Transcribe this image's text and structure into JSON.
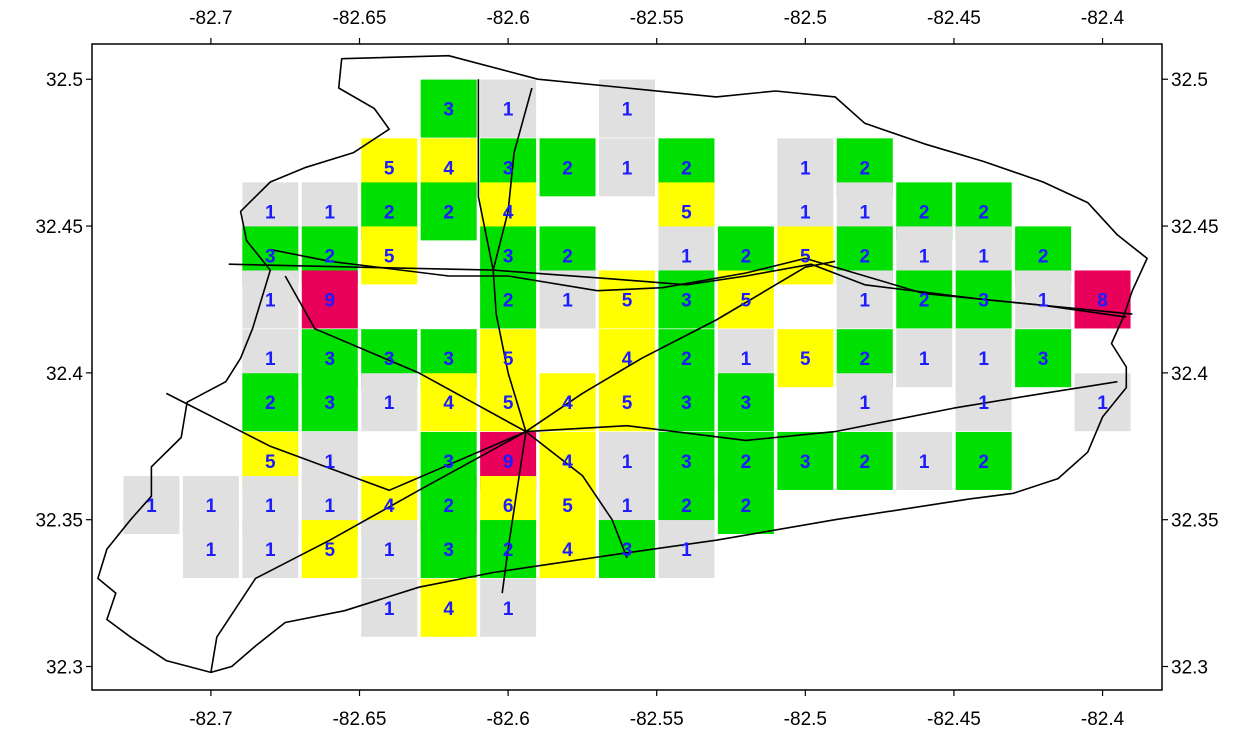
{
  "map": {
    "extent": {
      "lon": [
        -82.74,
        -82.38
      ],
      "lat": [
        32.292,
        32.512
      ]
    },
    "axes": {
      "x_ticks": [
        "-82.7",
        "-82.65",
        "-82.6",
        "-82.55",
        "-82.5",
        "-82.45",
        "-82.4"
      ],
      "y_ticks": [
        "32.5",
        "32.45",
        "32.4",
        "32.35",
        "32.3"
      ]
    },
    "colors": {
      "1": "#e0e0e0",
      "2": "#00e000",
      "3": "#00e000",
      "4": "#ffff00",
      "5": "#ffff00",
      "6": "#ffff00",
      "8": "#e8005a",
      "9": "#e8005a",
      "label": "#1c1cff",
      "boundary": "#000000"
    },
    "grid_cells": [
      {
        "lon": -82.62,
        "lat": 32.49,
        "count": "3"
      },
      {
        "lon": -82.6,
        "lat": 32.49,
        "count": "1"
      },
      {
        "lon": -82.56,
        "lat": 32.49,
        "count": "1"
      },
      {
        "lon": -82.64,
        "lat": 32.47,
        "count": "5"
      },
      {
        "lon": -82.62,
        "lat": 32.47,
        "count": "4"
      },
      {
        "lon": -82.6,
        "lat": 32.47,
        "count": "3"
      },
      {
        "lon": -82.58,
        "lat": 32.47,
        "count": "2"
      },
      {
        "lon": -82.56,
        "lat": 32.47,
        "count": "1"
      },
      {
        "lon": -82.54,
        "lat": 32.47,
        "count": "2"
      },
      {
        "lon": -82.5,
        "lat": 32.47,
        "count": "1"
      },
      {
        "lon": -82.48,
        "lat": 32.47,
        "count": "2"
      },
      {
        "lon": -82.68,
        "lat": 32.455,
        "count": "1"
      },
      {
        "lon": -82.66,
        "lat": 32.455,
        "count": "1"
      },
      {
        "lon": -82.64,
        "lat": 32.455,
        "count": "2"
      },
      {
        "lon": -82.62,
        "lat": 32.455,
        "count": "2"
      },
      {
        "lon": -82.6,
        "lat": 32.455,
        "count": "4"
      },
      {
        "lon": -82.54,
        "lat": 32.455,
        "count": "5"
      },
      {
        "lon": -82.5,
        "lat": 32.455,
        "count": "1"
      },
      {
        "lon": -82.48,
        "lat": 32.455,
        "count": "1"
      },
      {
        "lon": -82.46,
        "lat": 32.455,
        "count": "2"
      },
      {
        "lon": -82.44,
        "lat": 32.455,
        "count": "2"
      },
      {
        "lon": -82.68,
        "lat": 32.44,
        "count": "3"
      },
      {
        "lon": -82.66,
        "lat": 32.44,
        "count": "2"
      },
      {
        "lon": -82.64,
        "lat": 32.44,
        "count": "5"
      },
      {
        "lon": -82.6,
        "lat": 32.44,
        "count": "3"
      },
      {
        "lon": -82.58,
        "lat": 32.44,
        "count": "2"
      },
      {
        "lon": -82.54,
        "lat": 32.44,
        "count": "1"
      },
      {
        "lon": -82.52,
        "lat": 32.44,
        "count": "2"
      },
      {
        "lon": -82.5,
        "lat": 32.44,
        "count": "5"
      },
      {
        "lon": -82.48,
        "lat": 32.44,
        "count": "2"
      },
      {
        "lon": -82.46,
        "lat": 32.44,
        "count": "1"
      },
      {
        "lon": -82.44,
        "lat": 32.44,
        "count": "1"
      },
      {
        "lon": -82.42,
        "lat": 32.44,
        "count": "2"
      },
      {
        "lon": -82.68,
        "lat": 32.425,
        "count": "1"
      },
      {
        "lon": -82.66,
        "lat": 32.425,
        "count": "9"
      },
      {
        "lon": -82.6,
        "lat": 32.425,
        "count": "2"
      },
      {
        "lon": -82.58,
        "lat": 32.425,
        "count": "1"
      },
      {
        "lon": -82.56,
        "lat": 32.425,
        "count": "5"
      },
      {
        "lon": -82.54,
        "lat": 32.425,
        "count": "3"
      },
      {
        "lon": -82.52,
        "lat": 32.425,
        "count": "5"
      },
      {
        "lon": -82.48,
        "lat": 32.425,
        "count": "1"
      },
      {
        "lon": -82.46,
        "lat": 32.425,
        "count": "2"
      },
      {
        "lon": -82.44,
        "lat": 32.425,
        "count": "3"
      },
      {
        "lon": -82.42,
        "lat": 32.425,
        "count": "1"
      },
      {
        "lon": -82.4,
        "lat": 32.425,
        "count": "8"
      },
      {
        "lon": -82.68,
        "lat": 32.405,
        "count": "1"
      },
      {
        "lon": -82.66,
        "lat": 32.405,
        "count": "3"
      },
      {
        "lon": -82.64,
        "lat": 32.405,
        "count": "3"
      },
      {
        "lon": -82.62,
        "lat": 32.405,
        "count": "3"
      },
      {
        "lon": -82.6,
        "lat": 32.405,
        "count": "5"
      },
      {
        "lon": -82.56,
        "lat": 32.405,
        "count": "4"
      },
      {
        "lon": -82.54,
        "lat": 32.405,
        "count": "2"
      },
      {
        "lon": -82.52,
        "lat": 32.405,
        "count": "1"
      },
      {
        "lon": -82.5,
        "lat": 32.405,
        "count": "5"
      },
      {
        "lon": -82.48,
        "lat": 32.405,
        "count": "2"
      },
      {
        "lon": -82.46,
        "lat": 32.405,
        "count": "1"
      },
      {
        "lon": -82.44,
        "lat": 32.405,
        "count": "1"
      },
      {
        "lon": -82.42,
        "lat": 32.405,
        "count": "3"
      },
      {
        "lon": -82.68,
        "lat": 32.39,
        "count": "2"
      },
      {
        "lon": -82.66,
        "lat": 32.39,
        "count": "3"
      },
      {
        "lon": -82.64,
        "lat": 32.39,
        "count": "1"
      },
      {
        "lon": -82.62,
        "lat": 32.39,
        "count": "4"
      },
      {
        "lon": -82.6,
        "lat": 32.39,
        "count": "5"
      },
      {
        "lon": -82.58,
        "lat": 32.39,
        "count": "4"
      },
      {
        "lon": -82.56,
        "lat": 32.39,
        "count": "5"
      },
      {
        "lon": -82.54,
        "lat": 32.39,
        "count": "3"
      },
      {
        "lon": -82.52,
        "lat": 32.39,
        "count": "3"
      },
      {
        "lon": -82.48,
        "lat": 32.39,
        "count": "1"
      },
      {
        "lon": -82.44,
        "lat": 32.39,
        "count": "1"
      },
      {
        "lon": -82.4,
        "lat": 32.39,
        "count": "1"
      },
      {
        "lon": -82.68,
        "lat": 32.37,
        "count": "5"
      },
      {
        "lon": -82.66,
        "lat": 32.37,
        "count": "1"
      },
      {
        "lon": -82.62,
        "lat": 32.37,
        "count": "3"
      },
      {
        "lon": -82.6,
        "lat": 32.37,
        "count": "9"
      },
      {
        "lon": -82.58,
        "lat": 32.37,
        "count": "4"
      },
      {
        "lon": -82.56,
        "lat": 32.37,
        "count": "1"
      },
      {
        "lon": -82.54,
        "lat": 32.37,
        "count": "3"
      },
      {
        "lon": -82.52,
        "lat": 32.37,
        "count": "2"
      },
      {
        "lon": -82.5,
        "lat": 32.37,
        "count": "3"
      },
      {
        "lon": -82.48,
        "lat": 32.37,
        "count": "2"
      },
      {
        "lon": -82.46,
        "lat": 32.37,
        "count": "1"
      },
      {
        "lon": -82.44,
        "lat": 32.37,
        "count": "2"
      },
      {
        "lon": -82.72,
        "lat": 32.355,
        "count": "1"
      },
      {
        "lon": -82.7,
        "lat": 32.355,
        "count": "1"
      },
      {
        "lon": -82.68,
        "lat": 32.355,
        "count": "1"
      },
      {
        "lon": -82.66,
        "lat": 32.355,
        "count": "1"
      },
      {
        "lon": -82.64,
        "lat": 32.355,
        "count": "4"
      },
      {
        "lon": -82.62,
        "lat": 32.355,
        "count": "2"
      },
      {
        "lon": -82.6,
        "lat": 32.355,
        "count": "6"
      },
      {
        "lon": -82.58,
        "lat": 32.355,
        "count": "5"
      },
      {
        "lon": -82.56,
        "lat": 32.355,
        "count": "1"
      },
      {
        "lon": -82.54,
        "lat": 32.355,
        "count": "2"
      },
      {
        "lon": -82.52,
        "lat": 32.355,
        "count": "2"
      },
      {
        "lon": -82.7,
        "lat": 32.34,
        "count": "1"
      },
      {
        "lon": -82.68,
        "lat": 32.34,
        "count": "1"
      },
      {
        "lon": -82.66,
        "lat": 32.34,
        "count": "5"
      },
      {
        "lon": -82.64,
        "lat": 32.34,
        "count": "1"
      },
      {
        "lon": -82.62,
        "lat": 32.34,
        "count": "3"
      },
      {
        "lon": -82.6,
        "lat": 32.34,
        "count": "2"
      },
      {
        "lon": -82.58,
        "lat": 32.34,
        "count": "4"
      },
      {
        "lon": -82.56,
        "lat": 32.34,
        "count": "3"
      },
      {
        "lon": -82.54,
        "lat": 32.34,
        "count": "1"
      },
      {
        "lon": -82.64,
        "lat": 32.32,
        "count": "1"
      },
      {
        "lon": -82.62,
        "lat": 32.32,
        "count": "4"
      },
      {
        "lon": -82.6,
        "lat": 32.32,
        "count": "1"
      }
    ],
    "county_boundary": [
      [
        -82.656,
        32.507
      ],
      [
        -82.62,
        32.508
      ],
      [
        -82.59,
        32.5
      ],
      [
        -82.56,
        32.497
      ],
      [
        -82.53,
        32.494
      ],
      [
        -82.51,
        32.496
      ],
      [
        -82.49,
        32.494
      ],
      [
        -82.48,
        32.485
      ],
      [
        -82.46,
        32.478
      ],
      [
        -82.44,
        32.472
      ],
      [
        -82.42,
        32.465
      ],
      [
        -82.405,
        32.458
      ],
      [
        -82.395,
        32.447
      ],
      [
        -82.385,
        32.439
      ],
      [
        -82.39,
        32.428
      ],
      [
        -82.393,
        32.419
      ],
      [
        -82.397,
        32.41
      ],
      [
        -82.392,
        32.402
      ],
      [
        -82.392,
        32.395
      ],
      [
        -82.4,
        32.385
      ],
      [
        -82.405,
        32.373
      ],
      [
        -82.415,
        32.364
      ],
      [
        -82.43,
        32.359
      ],
      [
        -82.445,
        32.357
      ],
      [
        -82.49,
        32.35
      ],
      [
        -82.53,
        32.343
      ],
      [
        -82.565,
        32.338
      ],
      [
        -82.605,
        32.332
      ],
      [
        -82.63,
        32.327
      ],
      [
        -82.655,
        32.319
      ],
      [
        -82.675,
        32.315
      ],
      [
        -82.685,
        32.307
      ],
      [
        -82.693,
        32.3
      ],
      [
        -82.7,
        32.298
      ],
      [
        -82.715,
        32.302
      ],
      [
        -82.727,
        32.31
      ],
      [
        -82.735,
        32.316
      ],
      [
        -82.732,
        32.325
      ],
      [
        -82.738,
        32.33
      ],
      [
        -82.735,
        32.34
      ],
      [
        -82.727,
        32.35
      ],
      [
        -82.72,
        32.358
      ],
      [
        -82.72,
        32.368
      ],
      [
        -82.71,
        32.378
      ],
      [
        -82.708,
        32.39
      ],
      [
        -82.695,
        32.397
      ],
      [
        -82.69,
        32.405
      ],
      [
        -82.686,
        32.415
      ],
      [
        -82.683,
        32.425
      ],
      [
        -82.68,
        32.435
      ],
      [
        -82.688,
        32.445
      ],
      [
        -82.69,
        32.455
      ],
      [
        -82.68,
        32.465
      ],
      [
        -82.668,
        32.47
      ],
      [
        -82.652,
        32.475
      ],
      [
        -82.64,
        32.483
      ],
      [
        -82.645,
        32.49
      ],
      [
        -82.657,
        32.497
      ],
      [
        -82.656,
        32.507
      ]
    ],
    "roads": [
      [
        [
          -82.694,
          32.437
        ],
        [
          -82.65,
          32.436
        ],
        [
          -82.605,
          32.435
        ],
        [
          -82.565,
          32.432
        ],
        [
          -82.54,
          32.43
        ],
        [
          -82.52,
          32.433
        ],
        [
          -82.498,
          32.437
        ],
        [
          -82.48,
          32.43
        ],
        [
          -82.44,
          32.425
        ],
        [
          -82.39,
          32.42
        ]
      ],
      [
        [
          -82.68,
          32.442
        ],
        [
          -82.66,
          32.438
        ],
        [
          -82.62,
          32.433
        ],
        [
          -82.6,
          32.433
        ],
        [
          -82.57,
          32.428
        ],
        [
          -82.548,
          32.429
        ],
        [
          -82.52,
          32.434
        ],
        [
          -82.5,
          32.439
        ],
        [
          -82.46,
          32.427
        ],
        [
          -82.42,
          32.423
        ],
        [
          -82.392,
          32.419
        ]
      ],
      [
        [
          -82.594,
          32.38
        ],
        [
          -82.575,
          32.393
        ],
        [
          -82.555,
          32.405
        ],
        [
          -82.53,
          32.418
        ],
        [
          -82.5,
          32.436
        ],
        [
          -82.49,
          32.438
        ]
      ],
      [
        [
          -82.594,
          32.38
        ],
        [
          -82.6,
          32.4
        ],
        [
          -82.604,
          32.42
        ],
        [
          -82.605,
          32.435
        ],
        [
          -82.6,
          32.455
        ],
        [
          -82.598,
          32.475
        ],
        [
          -82.592,
          32.497
        ]
      ],
      [
        [
          -82.594,
          32.38
        ],
        [
          -82.56,
          32.382
        ],
        [
          -82.52,
          32.377
        ],
        [
          -82.49,
          32.38
        ],
        [
          -82.45,
          32.388
        ],
        [
          -82.42,
          32.393
        ],
        [
          -82.395,
          32.397
        ]
      ],
      [
        [
          -82.594,
          32.38
        ],
        [
          -82.63,
          32.36
        ],
        [
          -82.66,
          32.343
        ],
        [
          -82.685,
          32.33
        ],
        [
          -82.698,
          32.31
        ],
        [
          -82.7,
          32.298
        ]
      ],
      [
        [
          -82.594,
          32.38
        ],
        [
          -82.63,
          32.4
        ],
        [
          -82.665,
          32.415
        ],
        [
          -82.675,
          32.433
        ]
      ],
      [
        [
          -82.594,
          32.38
        ],
        [
          -82.64,
          32.36
        ],
        [
          -82.68,
          32.375
        ],
        [
          -82.715,
          32.393
        ]
      ],
      [
        [
          -82.594,
          32.38
        ],
        [
          -82.597,
          32.36
        ],
        [
          -82.6,
          32.34
        ],
        [
          -82.602,
          32.325
        ]
      ],
      [
        [
          -82.594,
          32.38
        ],
        [
          -82.575,
          32.365
        ],
        [
          -82.565,
          32.35
        ],
        [
          -82.56,
          32.337
        ]
      ],
      [
        [
          -82.605,
          32.435
        ],
        [
          -82.61,
          32.46
        ],
        [
          -82.61,
          32.48
        ],
        [
          -82.61,
          32.5
        ]
      ]
    ]
  }
}
